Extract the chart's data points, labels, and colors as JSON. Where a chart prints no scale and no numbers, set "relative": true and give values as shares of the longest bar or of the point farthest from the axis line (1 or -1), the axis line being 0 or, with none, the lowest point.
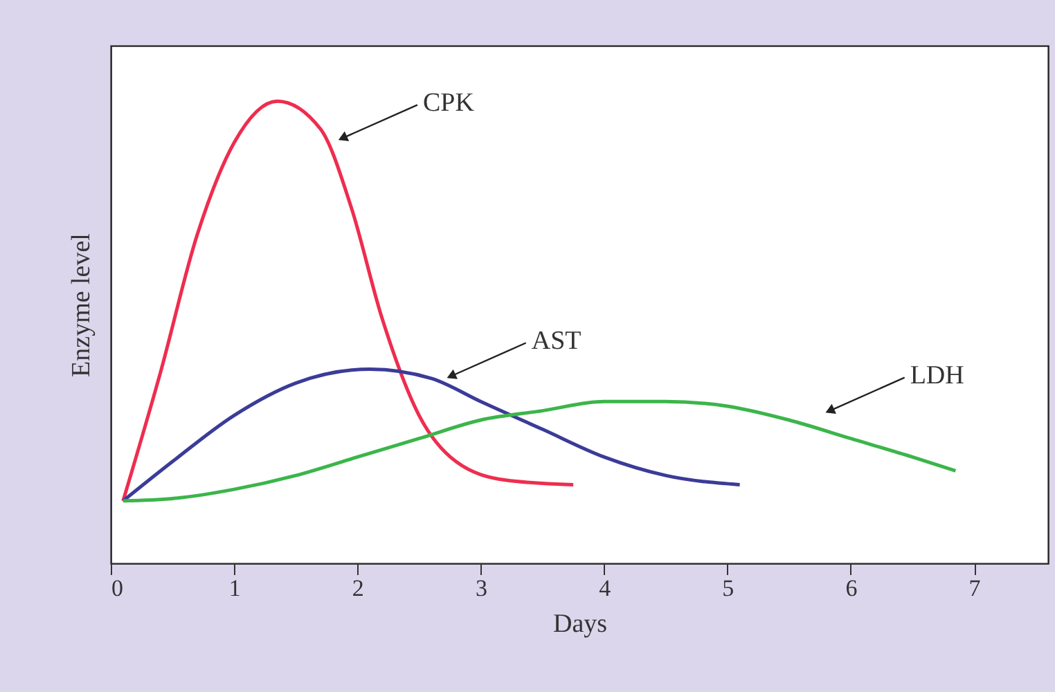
{
  "chart_data": {
    "type": "line",
    "xlabel": "Days",
    "ylabel": "Enzyme level",
    "relative": true,
    "xlim": [
      0,
      7.6
    ],
    "xticks": [
      0,
      1,
      2,
      3,
      4,
      5,
      6,
      7
    ],
    "grid": false,
    "legend": false,
    "marker": "none",
    "line_style": "solid",
    "series": [
      {
        "color": "#ee2d4f",
        "x": [
          0.1,
          0.4,
          0.7,
          1.0,
          1.35,
          1.7,
          1.95,
          2.2,
          2.5,
          2.8,
          3.2,
          3.75
        ],
        "values": [
          0.135,
          0.41,
          0.71,
          0.91,
          1.0,
          0.94,
          0.77,
          0.53,
          0.32,
          0.22,
          0.18,
          0.17
        ]
      },
      {
        "color": "#3b3b98",
        "x": [
          0.1,
          0.5,
          1.0,
          1.5,
          2.1,
          2.6,
          3.0,
          3.5,
          4.0,
          4.5,
          5.1
        ],
        "values": [
          0.135,
          0.22,
          0.32,
          0.39,
          0.42,
          0.4,
          0.35,
          0.29,
          0.23,
          0.19,
          0.17
        ]
      },
      {
        "color": "#3cb54a",
        "x": [
          0.1,
          0.5,
          1.0,
          1.5,
          2.0,
          2.5,
          3.0,
          3.5,
          4.0,
          4.5,
          5.0,
          5.5,
          6.0,
          6.5,
          6.85
        ],
        "values": [
          0.135,
          0.14,
          0.16,
          0.19,
          0.23,
          0.27,
          0.31,
          0.33,
          0.35,
          0.35,
          0.34,
          0.31,
          0.27,
          0.23,
          0.2
        ]
      }
    ],
    "annotations": [
      {
        "text": "CPK",
        "x": 1.88,
        "y": 0.92
      },
      {
        "text": "AST",
        "x": 2.76,
        "y": 0.405
      },
      {
        "text": "LDH",
        "x": 5.83,
        "y": 0.33
      }
    ]
  }
}
